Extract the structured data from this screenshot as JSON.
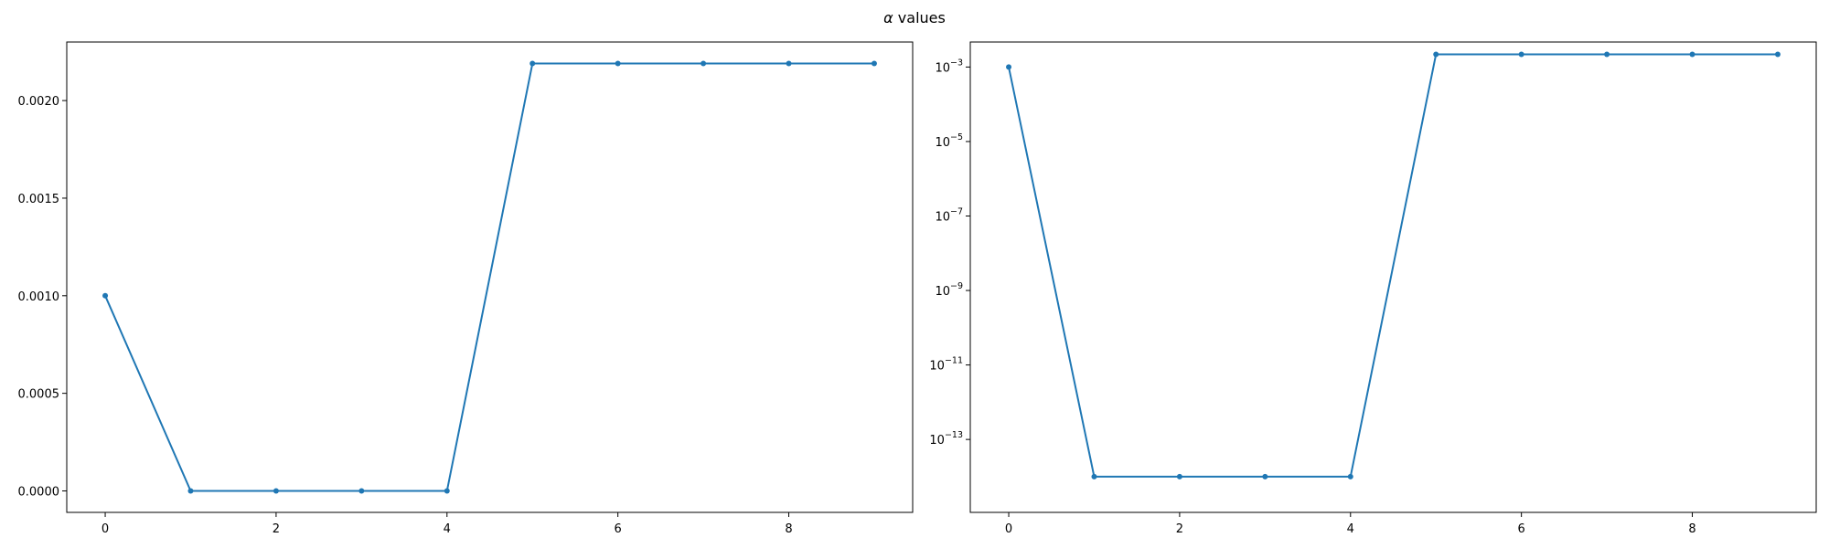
{
  "figure": {
    "suptitle": {
      "symbol": "α",
      "text": " values"
    }
  },
  "colors": {
    "series": "#1f77b4",
    "axes": "#000000",
    "background": "#ffffff"
  },
  "chart_data": [
    {
      "type": "line",
      "title": "",
      "xlabel": "",
      "ylabel": "",
      "yscale": "linear",
      "grid": false,
      "marker": "point",
      "x": [
        0,
        1,
        2,
        3,
        4,
        5,
        6,
        7,
        8,
        9
      ],
      "series": [
        {
          "values": [
            0.001,
            1e-14,
            1e-14,
            1e-14,
            1e-14,
            0.00219,
            0.00219,
            0.00219,
            0.00219,
            0.00219
          ]
        }
      ],
      "xlim": [
        -0.45,
        9.45
      ],
      "ylim": [
        -0.00011,
        0.0023
      ],
      "xticks": [
        0,
        2,
        4,
        6,
        8
      ],
      "xtick_labels": [
        "0",
        "2",
        "4",
        "6",
        "8"
      ],
      "yticks": [
        0,
        0.0005,
        0.001,
        0.0015,
        0.002
      ],
      "ytick_labels": [
        "0.0000",
        "0.0005",
        "0.0010",
        "0.0015",
        "0.0020"
      ]
    },
    {
      "type": "line",
      "title": "",
      "xlabel": "",
      "ylabel": "",
      "yscale": "log",
      "grid": false,
      "marker": "point",
      "x": [
        0,
        1,
        2,
        3,
        4,
        5,
        6,
        7,
        8,
        9
      ],
      "series": [
        {
          "values": [
            0.001,
            1e-14,
            1e-14,
            1e-14,
            1e-14,
            0.00219,
            0.00219,
            0.00219,
            0.00219,
            0.00219
          ]
        }
      ],
      "xlim": [
        -0.45,
        9.45
      ],
      "ylim": [
        1.1e-15,
        0.0047
      ],
      "xticks": [
        0,
        2,
        4,
        6,
        8
      ],
      "xtick_labels": [
        "0",
        "2",
        "4",
        "6",
        "8"
      ],
      "yticks": [
        0.001,
        1e-05,
        1e-07,
        1e-09,
        1e-11,
        1e-13
      ],
      "ytick_labels": [
        {
          "base": "10",
          "exp": "−3"
        },
        {
          "base": "10",
          "exp": "−5"
        },
        {
          "base": "10",
          "exp": "−7"
        },
        {
          "base": "10",
          "exp": "−9"
        },
        {
          "base": "10",
          "exp": "−11"
        },
        {
          "base": "10",
          "exp": "−13"
        }
      ]
    }
  ]
}
